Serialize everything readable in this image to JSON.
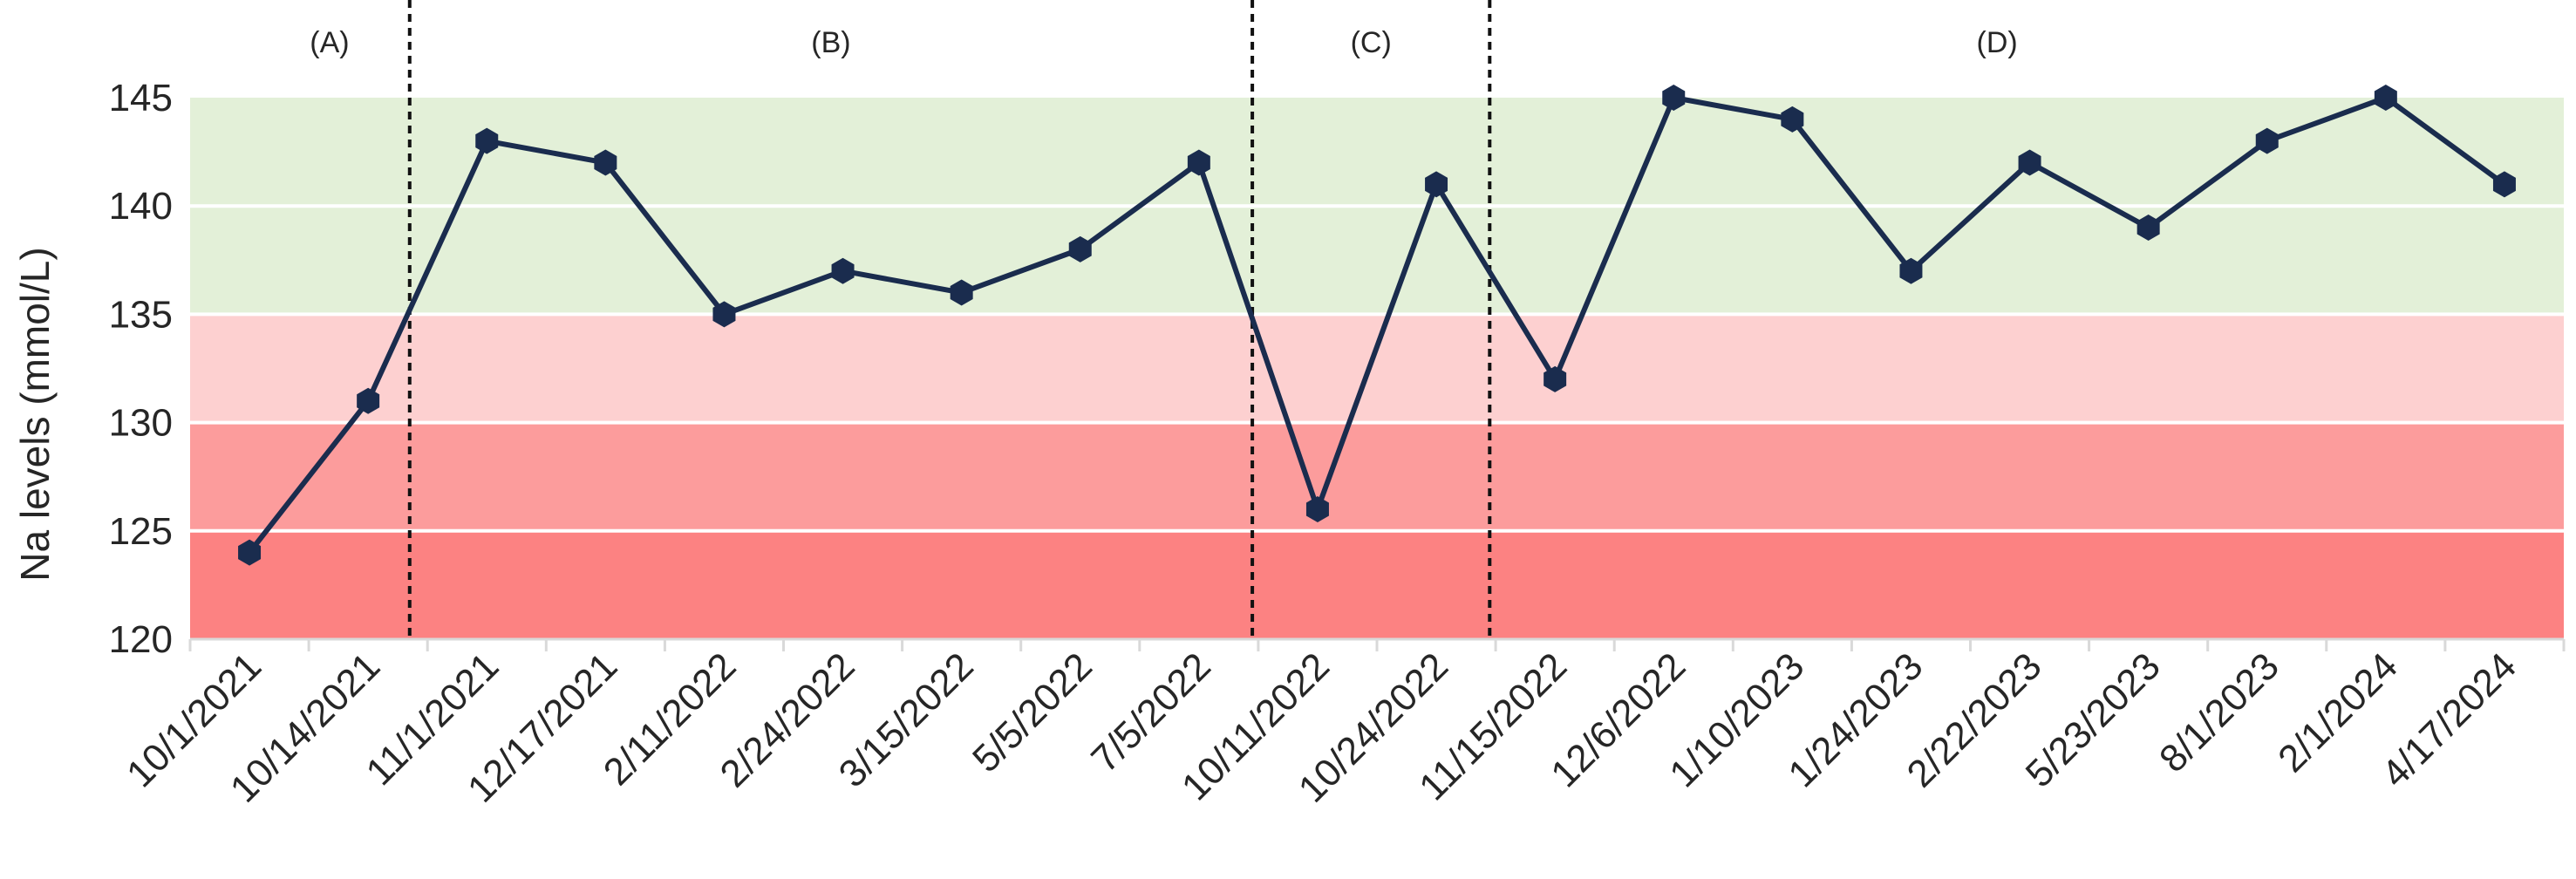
{
  "chart_data": {
    "type": "line",
    "title": "",
    "xlabel": "",
    "ylabel": "Na levels (mmol/L)",
    "ylim": [
      120,
      145
    ],
    "yticks": [
      120,
      125,
      130,
      135,
      140,
      145
    ],
    "categories": [
      "10/1/2021",
      "10/14/2021",
      "11/1/2021",
      "12/17/2021",
      "2/11/2022",
      "2/24/2022",
      "3/15/2022",
      "5/5/2022",
      "7/5/2022",
      "10/11/2022",
      "10/24/2022",
      "11/15/2022",
      "12/6/2022",
      "1/10/2023",
      "1/24/2023",
      "2/22/2023",
      "5/23/2023",
      "8/1/2023",
      "2/1/2024",
      "4/17/2024"
    ],
    "series": [
      {
        "values": [
          124,
          131,
          143,
          142,
          135,
          137,
          136,
          138,
          142,
          126,
          141,
          132,
          145,
          144,
          137,
          142,
          139,
          143,
          145,
          141
        ],
        "color": "#1a2c4e"
      }
    ],
    "bands": [
      {
        "from": 135,
        "to": 145,
        "color": "#e3f0d8"
      },
      {
        "from": 130,
        "to": 135,
        "color": "#fdd0d0"
      },
      {
        "from": 125,
        "to": 130,
        "color": "#fc9c9c"
      },
      {
        "from": 120,
        "to": 125,
        "color": "#fc8282"
      }
    ],
    "phases": [
      {
        "label": "(A)",
        "start": 0,
        "end": 1.35
      },
      {
        "label": "(B)",
        "start": 1.35,
        "end": 8.45
      },
      {
        "label": "(C)",
        "start": 8.45,
        "end": 10.45
      },
      {
        "label": "(D)",
        "start": 10.45,
        "end": 19
      }
    ],
    "dividers": [
      1.35,
      8.45,
      10.45
    ],
    "grid": false,
    "legend": "none"
  }
}
